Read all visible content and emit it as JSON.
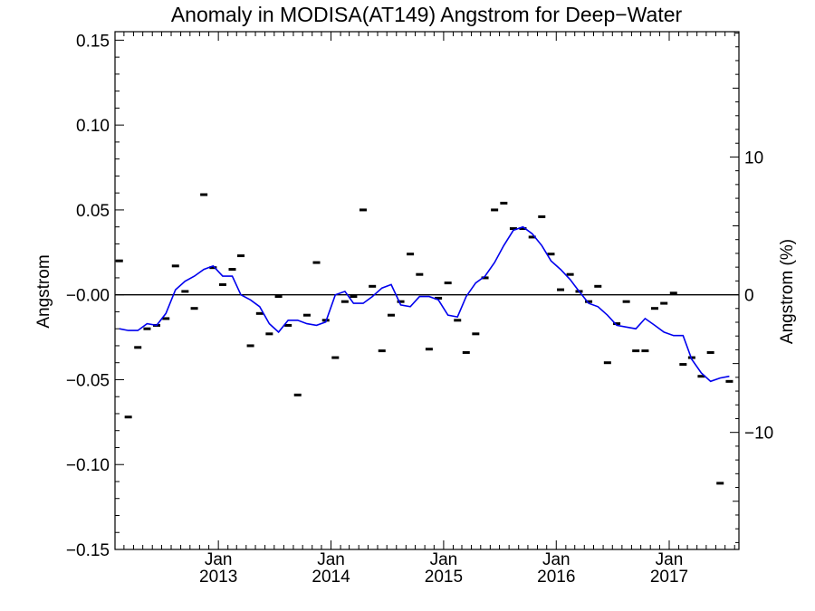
{
  "chart_data": {
    "type": "scatter",
    "title": "Anomaly in MODISA(AT149) Angstrom for Deep−Water",
    "ylabel": "Angstrom",
    "y2label": "Angstrom (%)",
    "ylim": [
      -0.15,
      0.155
    ],
    "y2lim": [
      -18.5,
      19.1
    ],
    "xlim": [
      "2012-02-01",
      "2017-08-15"
    ],
    "grid": false,
    "left_ticks": [
      {
        "value": 0.15,
        "label": "0.15"
      },
      {
        "value": 0.1,
        "label": "0.10"
      },
      {
        "value": 0.05,
        "label": "0.05"
      },
      {
        "value": 0.0,
        "label": "−0.00"
      },
      {
        "value": -0.05,
        "label": "−0.05"
      },
      {
        "value": -0.1,
        "label": "−0.10"
      },
      {
        "value": -0.15,
        "label": "−0.15"
      }
    ],
    "right_ticks": [
      {
        "value": 10,
        "label": "10"
      },
      {
        "value": 0,
        "label": "0"
      },
      {
        "value": -10,
        "label": "−10"
      }
    ],
    "x_ticks": [
      {
        "date": "2013-01-01",
        "month": "Jan",
        "year": "2013"
      },
      {
        "date": "2014-01-01",
        "month": "Jan",
        "year": "2014"
      },
      {
        "date": "2015-01-01",
        "month": "Jan",
        "year": "2015"
      },
      {
        "date": "2016-01-01",
        "month": "Jan",
        "year": "2016"
      },
      {
        "date": "2017-01-01",
        "month": "Jan",
        "year": "2017"
      }
    ],
    "reference_line": 0,
    "series": [
      {
        "kind": "markers",
        "color": "#000000",
        "points": [
          [
            "2012-02",
            0.02
          ],
          [
            "2012-03",
            -0.072
          ],
          [
            "2012-04",
            -0.031
          ],
          [
            "2012-05",
            -0.02
          ],
          [
            "2012-06",
            -0.018
          ],
          [
            "2012-07",
            -0.014
          ],
          [
            "2012-08",
            0.017
          ],
          [
            "2012-09",
            0.002
          ],
          [
            "2012-10",
            -0.008
          ],
          [
            "2012-11",
            0.059
          ],
          [
            "2012-12",
            0.016
          ],
          [
            "2013-01",
            0.006
          ],
          [
            "2013-02",
            0.015
          ],
          [
            "2013-03",
            0.023
          ],
          [
            "2013-04",
            -0.03
          ],
          [
            "2013-05",
            -0.011
          ],
          [
            "2013-06",
            -0.023
          ],
          [
            "2013-07",
            -0.001
          ],
          [
            "2013-08",
            -0.018
          ],
          [
            "2013-09",
            -0.059
          ],
          [
            "2013-10",
            -0.012
          ],
          [
            "2013-11",
            0.019
          ],
          [
            "2013-12",
            -0.015
          ],
          [
            "2014-01",
            -0.037
          ],
          [
            "2014-02",
            -0.004
          ],
          [
            "2014-03",
            -0.001
          ],
          [
            "2014-04",
            0.05
          ],
          [
            "2014-05",
            0.005
          ],
          [
            "2014-06",
            -0.033
          ],
          [
            "2014-07",
            -0.012
          ],
          [
            "2014-08",
            -0.004
          ],
          [
            "2014-09",
            0.024
          ],
          [
            "2014-10",
            0.012
          ],
          [
            "2014-11",
            -0.032
          ],
          [
            "2014-12",
            -0.002
          ],
          [
            "2015-01",
            0.007
          ],
          [
            "2015-02",
            -0.015
          ],
          [
            "2015-03",
            -0.034
          ],
          [
            "2015-04",
            -0.023
          ],
          [
            "2015-05",
            0.01
          ],
          [
            "2015-06",
            0.05
          ],
          [
            "2015-07",
            0.054
          ],
          [
            "2015-08",
            0.039
          ],
          [
            "2015-09",
            0.039
          ],
          [
            "2015-10",
            0.034
          ],
          [
            "2015-11",
            0.046
          ],
          [
            "2015-12",
            0.024
          ],
          [
            "2016-01",
            0.003
          ],
          [
            "2016-02",
            0.012
          ],
          [
            "2016-03",
            0.002
          ],
          [
            "2016-04",
            -0.004
          ],
          [
            "2016-05",
            0.005
          ],
          [
            "2016-06",
            -0.04
          ],
          [
            "2016-07",
            -0.017
          ],
          [
            "2016-08",
            -0.004
          ],
          [
            "2016-09",
            -0.033
          ],
          [
            "2016-10",
            -0.033
          ],
          [
            "2016-11",
            -0.008
          ],
          [
            "2016-12",
            -0.005
          ],
          [
            "2017-01",
            0.001
          ],
          [
            "2017-02",
            -0.041
          ],
          [
            "2017-03",
            -0.037
          ],
          [
            "2017-04",
            -0.048
          ],
          [
            "2017-05",
            -0.034
          ],
          [
            "2017-06",
            -0.111
          ],
          [
            "2017-07",
            -0.051
          ]
        ]
      },
      {
        "kind": "line",
        "color": "#0000ee",
        "points": [
          [
            "2012-02",
            -0.02
          ],
          [
            "2012-03",
            -0.021
          ],
          [
            "2012-04",
            -0.021
          ],
          [
            "2012-05",
            -0.017
          ],
          [
            "2012-06",
            -0.018
          ],
          [
            "2012-07",
            -0.011
          ],
          [
            "2012-08",
            0.003
          ],
          [
            "2012-09",
            0.008
          ],
          [
            "2012-10",
            0.011
          ],
          [
            "2012-11",
            0.015
          ],
          [
            "2012-12",
            0.017
          ],
          [
            "2013-01",
            0.011
          ],
          [
            "2013-02",
            0.011
          ],
          [
            "2013-03",
            0.0
          ],
          [
            "2013-04",
            -0.003
          ],
          [
            "2013-05",
            -0.007
          ],
          [
            "2013-06",
            -0.017
          ],
          [
            "2013-07",
            -0.022
          ],
          [
            "2013-08",
            -0.015
          ],
          [
            "2013-09",
            -0.015
          ],
          [
            "2013-10",
            -0.017
          ],
          [
            "2013-11",
            -0.018
          ],
          [
            "2013-12",
            -0.016
          ],
          [
            "2014-01",
            0.0
          ],
          [
            "2014-02",
            0.002
          ],
          [
            "2014-03",
            -0.005
          ],
          [
            "2014-04",
            -0.005
          ],
          [
            "2014-05",
            -0.001
          ],
          [
            "2014-06",
            0.004
          ],
          [
            "2014-07",
            0.006
          ],
          [
            "2014-08",
            -0.006
          ],
          [
            "2014-09",
            -0.007
          ],
          [
            "2014-10",
            -0.001
          ],
          [
            "2014-11",
            -0.001
          ],
          [
            "2014-12",
            -0.003
          ],
          [
            "2015-01",
            -0.012
          ],
          [
            "2015-02",
            -0.013
          ],
          [
            "2015-03",
            -0.001
          ],
          [
            "2015-04",
            0.007
          ],
          [
            "2015-05",
            0.011
          ],
          [
            "2015-06",
            0.019
          ],
          [
            "2015-07",
            0.029
          ],
          [
            "2015-08",
            0.038
          ],
          [
            "2015-09",
            0.04
          ],
          [
            "2015-10",
            0.036
          ],
          [
            "2015-11",
            0.029
          ],
          [
            "2015-12",
            0.02
          ],
          [
            "2016-01",
            0.015
          ],
          [
            "2016-02",
            0.009
          ],
          [
            "2016-03",
            0.002
          ],
          [
            "2016-04",
            -0.005
          ],
          [
            "2016-05",
            -0.007
          ],
          [
            "2016-06",
            -0.012
          ],
          [
            "2016-07",
            -0.018
          ],
          [
            "2016-08",
            -0.019
          ],
          [
            "2016-09",
            -0.02
          ],
          [
            "2016-10",
            -0.014
          ],
          [
            "2016-11",
            -0.018
          ],
          [
            "2016-12",
            -0.022
          ],
          [
            "2017-01",
            -0.024
          ],
          [
            "2017-02",
            -0.024
          ],
          [
            "2017-03",
            -0.038
          ],
          [
            "2017-04",
            -0.046
          ],
          [
            "2017-05",
            -0.051
          ],
          [
            "2017-06",
            -0.049
          ],
          [
            "2017-07",
            -0.048
          ]
        ]
      }
    ]
  }
}
